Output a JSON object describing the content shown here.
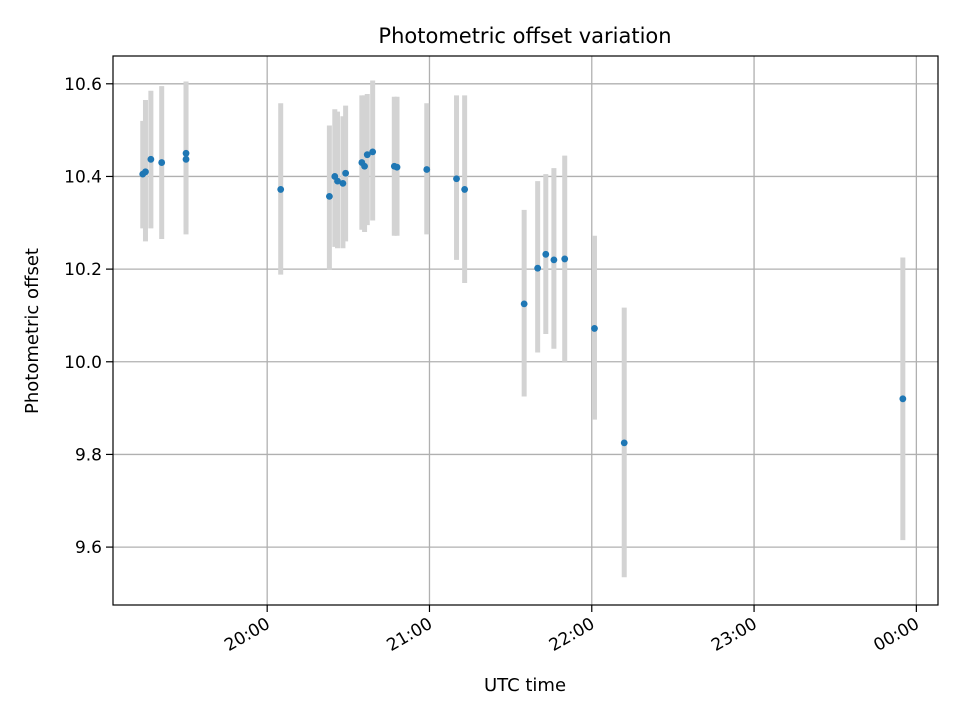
{
  "chart_data": {
    "type": "scatter",
    "title": "Photometric offset variation",
    "xlabel": "UTC time",
    "ylabel": "Photometric offset",
    "x_unit": "time HH:MM (UTC)",
    "xlim": [
      "19:03",
      "00:08"
    ],
    "ylim": [
      9.475,
      10.66
    ],
    "grid": true,
    "x_tick_labels": [
      "20:00",
      "21:00",
      "22:00",
      "23:00",
      "00:00"
    ],
    "x_tick_times": [
      "20:00",
      "21:00",
      "22:00",
      "23:00",
      "24:00"
    ],
    "y_ticks": [
      "9.6",
      "9.8",
      "10.0",
      "10.2",
      "10.4",
      "10.6"
    ],
    "colors": {
      "point": "#1f77b4",
      "errorbar": "#d3d3d3",
      "grid": "#b0b0b0"
    },
    "points": [
      {
        "t": "19:14",
        "y": 10.405,
        "lo": 10.288,
        "hi": 10.52
      },
      {
        "t": "19:15",
        "y": 10.41,
        "lo": 10.26,
        "hi": 10.565
      },
      {
        "t": "19:17",
        "y": 10.437,
        "lo": 10.288,
        "hi": 10.585
      },
      {
        "t": "19:21",
        "y": 10.43,
        "lo": 10.265,
        "hi": 10.595
      },
      {
        "t": "19:30",
        "y": 10.437,
        "lo": 10.275,
        "hi": 10.605
      },
      {
        "t": "19:30",
        "y": 10.45,
        "lo": 10.29,
        "hi": 10.605
      },
      {
        "t": "20:05",
        "y": 10.372,
        "lo": 10.188,
        "hi": 10.558
      },
      {
        "t": "20:23",
        "y": 10.357,
        "lo": 10.198,
        "hi": 10.51
      },
      {
        "t": "20:25",
        "y": 10.4,
        "lo": 10.248,
        "hi": 10.545
      },
      {
        "t": "20:26",
        "y": 10.39,
        "lo": 10.245,
        "hi": 10.54
      },
      {
        "t": "20:28",
        "y": 10.385,
        "lo": 10.245,
        "hi": 10.53
      },
      {
        "t": "20:29",
        "y": 10.407,
        "lo": 10.26,
        "hi": 10.553
      },
      {
        "t": "20:35",
        "y": 10.43,
        "lo": 10.285,
        "hi": 10.575
      },
      {
        "t": "20:36",
        "y": 10.422,
        "lo": 10.28,
        "hi": 10.575
      },
      {
        "t": "20:37",
        "y": 10.447,
        "lo": 10.295,
        "hi": 10.578
      },
      {
        "t": "20:39",
        "y": 10.453,
        "lo": 10.305,
        "hi": 10.607
      },
      {
        "t": "20:47",
        "y": 10.422,
        "lo": 10.272,
        "hi": 10.572
      },
      {
        "t": "20:48",
        "y": 10.42,
        "lo": 10.272,
        "hi": 10.572
      },
      {
        "t": "20:59",
        "y": 10.415,
        "lo": 10.275,
        "hi": 10.558
      },
      {
        "t": "21:10",
        "y": 10.395,
        "lo": 10.22,
        "hi": 10.575
      },
      {
        "t": "21:13",
        "y": 10.372,
        "lo": 10.17,
        "hi": 10.575
      },
      {
        "t": "21:35",
        "y": 10.125,
        "lo": 9.925,
        "hi": 10.328
      },
      {
        "t": "21:40",
        "y": 10.202,
        "lo": 10.02,
        "hi": 10.39
      },
      {
        "t": "21:43",
        "y": 10.232,
        "lo": 10.06,
        "hi": 10.405
      },
      {
        "t": "21:46",
        "y": 10.22,
        "lo": 10.028,
        "hi": 10.418
      },
      {
        "t": "21:50",
        "y": 10.222,
        "lo": 10.0,
        "hi": 10.445
      },
      {
        "t": "22:01",
        "y": 10.072,
        "lo": 9.875,
        "hi": 10.272
      },
      {
        "t": "22:12",
        "y": 9.825,
        "lo": 9.535,
        "hi": 10.117
      },
      {
        "t": "23:55",
        "y": 9.92,
        "lo": 9.615,
        "hi": 10.225
      }
    ]
  }
}
